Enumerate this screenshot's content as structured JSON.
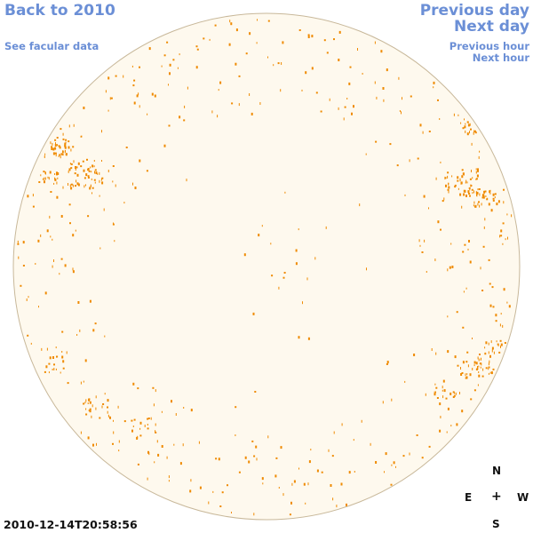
{
  "nav": {
    "back_label": "Back to 2010",
    "facular_label": "See facular data",
    "previous_day_label": "Previous day",
    "next_day_label": "Next day",
    "previous_hour_label": "Previous hour",
    "next_hour_label": "Next hour"
  },
  "compass": {
    "north": "N",
    "east": "E",
    "center": "+",
    "west": "W",
    "south": "S"
  },
  "timestamp": "2010-12-14T20:58:56",
  "colors": {
    "link": "#6b8fd6",
    "disk_fill": "#fef9ee",
    "disk_edge": "#c8b89a",
    "spot": "#ef8a00"
  }
}
